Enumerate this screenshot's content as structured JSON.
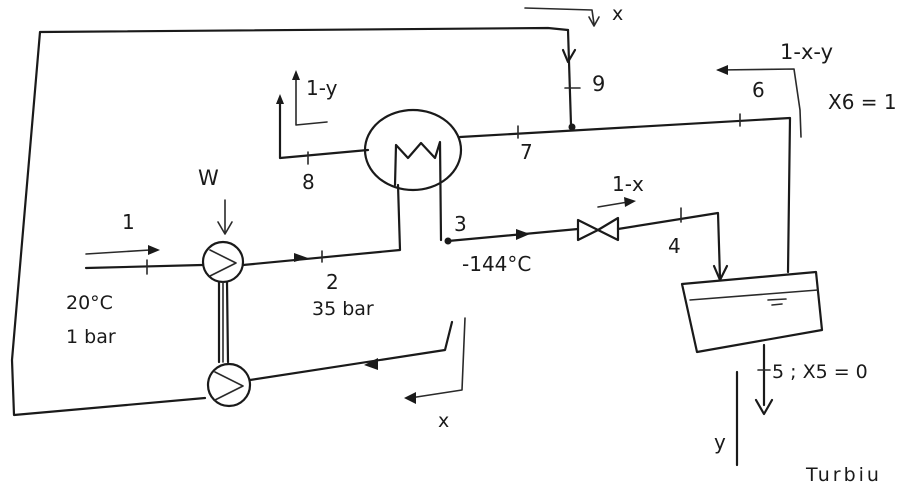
{
  "labels": {
    "top_x": "x",
    "state_9": "9",
    "right_top_flow": "1-x-y",
    "quality_6": "X6 = 1",
    "state_6": "6",
    "left_top_flow": "1-y",
    "state_7": "7",
    "state_8": "8",
    "work": "W",
    "state_1_flow": "1",
    "state_3": "3",
    "valve_flow": "1-x",
    "state_4": "4",
    "state_2": "2",
    "temp_3": "-144°C",
    "inlet_temp": "20°C",
    "inlet_pressure": "1 bar",
    "pressure_2": "35 bar",
    "state_5": "5 ; X5 = 0",
    "bottom_x": "x",
    "y_label": "y",
    "turbine": "Turbiu"
  }
}
